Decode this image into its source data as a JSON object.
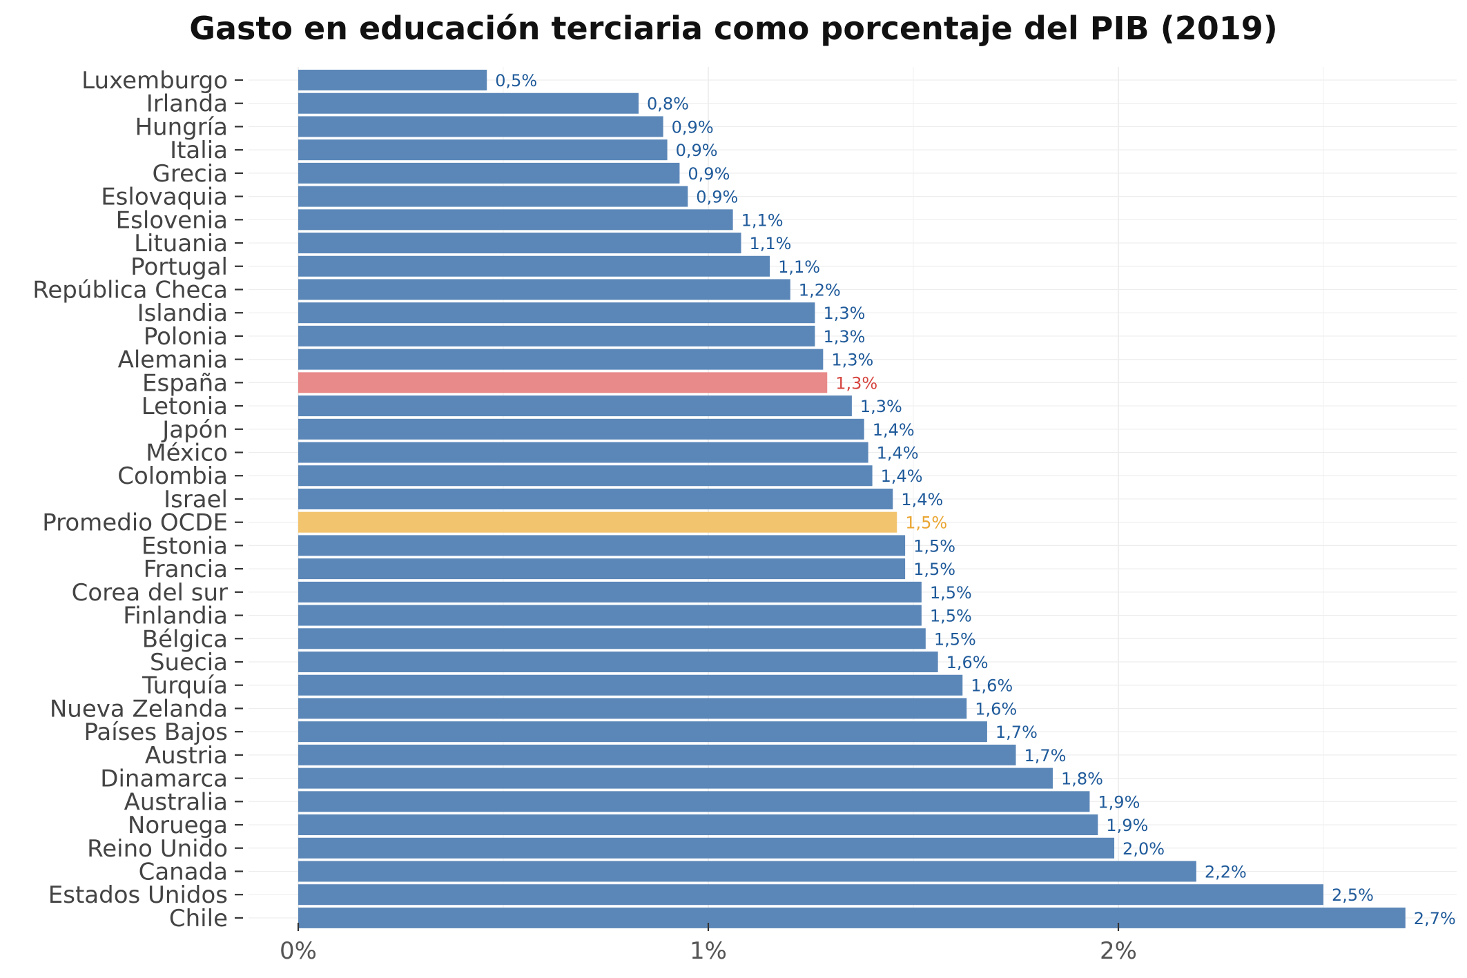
{
  "chart_data": {
    "type": "bar",
    "orientation": "horizontal",
    "title": "Gasto en educación terciaria como porcentaje del PIB (2019)",
    "xlabel": "",
    "ylabel": "",
    "xlim": [
      0,
      2.8
    ],
    "x_ticks": [
      {
        "value": 0,
        "label": "0%"
      },
      {
        "value": 1,
        "label": "1%"
      },
      {
        "value": 2,
        "label": "2%"
      }
    ],
    "grid": true,
    "legend": "none",
    "colors": {
      "default": "#5b87b8",
      "default_label": "#1f5a9a",
      "highlight_spain": "#e8898a",
      "highlight_spain_label": "#d6453f",
      "highlight_oecd": "#f2c46d",
      "highlight_oecd_label": "#eaa632"
    },
    "bars": [
      {
        "category": "Luxemburgo",
        "value": 0.46,
        "label": "0,5%",
        "highlight": "default"
      },
      {
        "category": "Irlanda",
        "value": 0.83,
        "label": "0,8%",
        "highlight": "default"
      },
      {
        "category": "Hungría",
        "value": 0.89,
        "label": "0,9%",
        "highlight": "default"
      },
      {
        "category": "Italia",
        "value": 0.9,
        "label": "0,9%",
        "highlight": "default"
      },
      {
        "category": "Grecia",
        "value": 0.93,
        "label": "0,9%",
        "highlight": "default"
      },
      {
        "category": "Eslovaquia",
        "value": 0.95,
        "label": "0,9%",
        "highlight": "default"
      },
      {
        "category": "Eslovenia",
        "value": 1.06,
        "label": "1,1%",
        "highlight": "default"
      },
      {
        "category": "Lituania",
        "value": 1.08,
        "label": "1,1%",
        "highlight": "default"
      },
      {
        "category": "Portugal",
        "value": 1.15,
        "label": "1,1%",
        "highlight": "default"
      },
      {
        "category": "República Checa",
        "value": 1.2,
        "label": "1,2%",
        "highlight": "default"
      },
      {
        "category": "Islandia",
        "value": 1.26,
        "label": "1,3%",
        "highlight": "default"
      },
      {
        "category": "Polonia",
        "value": 1.26,
        "label": "1,3%",
        "highlight": "default"
      },
      {
        "category": "Alemania",
        "value": 1.28,
        "label": "1,3%",
        "highlight": "default"
      },
      {
        "category": "España",
        "value": 1.29,
        "label": "1,3%",
        "highlight": "spain"
      },
      {
        "category": "Letonia",
        "value": 1.35,
        "label": "1,3%",
        "highlight": "default"
      },
      {
        "category": "Japón",
        "value": 1.38,
        "label": "1,4%",
        "highlight": "default"
      },
      {
        "category": "México",
        "value": 1.39,
        "label": "1,4%",
        "highlight": "default"
      },
      {
        "category": "Colombia",
        "value": 1.4,
        "label": "1,4%",
        "highlight": "default"
      },
      {
        "category": "Israel",
        "value": 1.45,
        "label": "1,4%",
        "highlight": "default"
      },
      {
        "category": "Promedio OCDE",
        "value": 1.46,
        "label": "1,5%",
        "highlight": "oecd"
      },
      {
        "category": "Estonia",
        "value": 1.48,
        "label": "1,5%",
        "highlight": "default"
      },
      {
        "category": "Francia",
        "value": 1.48,
        "label": "1,5%",
        "highlight": "default"
      },
      {
        "category": "Corea del sur",
        "value": 1.52,
        "label": "1,5%",
        "highlight": "default"
      },
      {
        "category": "Finlandia",
        "value": 1.52,
        "label": "1,5%",
        "highlight": "default"
      },
      {
        "category": "Bélgica",
        "value": 1.53,
        "label": "1,5%",
        "highlight": "default"
      },
      {
        "category": "Suecia",
        "value": 1.56,
        "label": "1,6%",
        "highlight": "default"
      },
      {
        "category": "Turquía",
        "value": 1.62,
        "label": "1,6%",
        "highlight": "default"
      },
      {
        "category": "Nueva Zelanda",
        "value": 1.63,
        "label": "1,6%",
        "highlight": "default"
      },
      {
        "category": "Países Bajos",
        "value": 1.68,
        "label": "1,7%",
        "highlight": "default"
      },
      {
        "category": "Austria",
        "value": 1.75,
        "label": "1,7%",
        "highlight": "default"
      },
      {
        "category": "Dinamarca",
        "value": 1.84,
        "label": "1,8%",
        "highlight": "default"
      },
      {
        "category": "Australia",
        "value": 1.93,
        "label": "1,9%",
        "highlight": "default"
      },
      {
        "category": "Noruega",
        "value": 1.95,
        "label": "1,9%",
        "highlight": "default"
      },
      {
        "category": "Reino Unido",
        "value": 1.99,
        "label": "2,0%",
        "highlight": "default"
      },
      {
        "category": "Canada",
        "value": 2.19,
        "label": "2,2%",
        "highlight": "default"
      },
      {
        "category": "Estados Unidos",
        "value": 2.5,
        "label": "2,5%",
        "highlight": "default"
      },
      {
        "category": "Chile",
        "value": 2.7,
        "label": "2,7%",
        "highlight": "default"
      }
    ]
  }
}
